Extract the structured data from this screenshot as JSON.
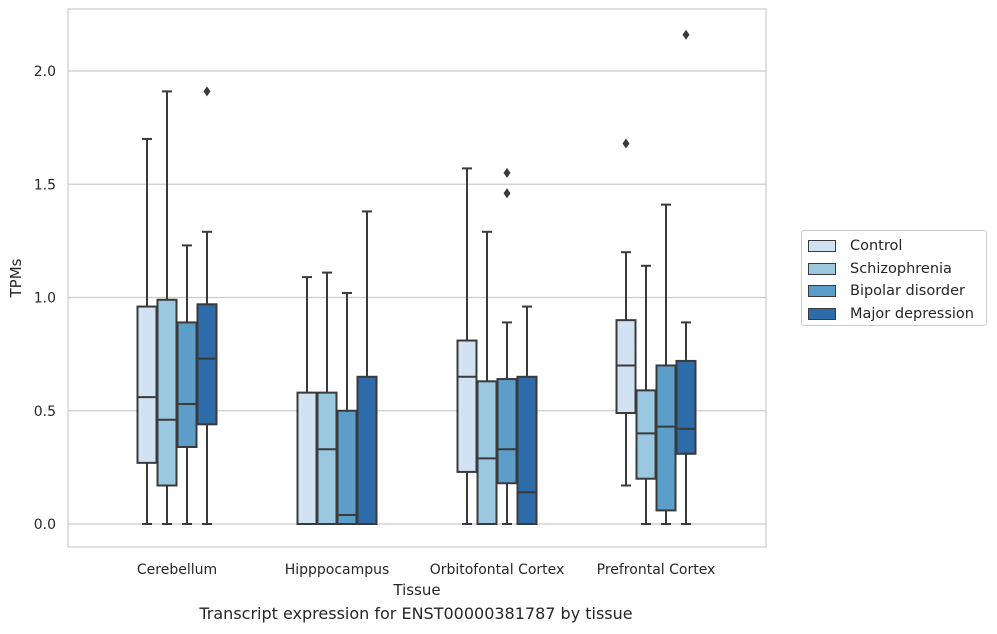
{
  "chart_data": {
    "type": "boxplot",
    "xlabel": "Tissue",
    "ylabel": "TPMs",
    "caption": "Transcript expression for ENST00000381787 by tissue",
    "ylim": [
      -0.1,
      2.28
    ],
    "yticks": [
      0.0,
      0.5,
      1.0,
      1.5,
      2.0
    ],
    "ytick_labels": [
      "0.0",
      "0.5",
      "1.0",
      "1.5",
      "2.0"
    ],
    "grid": "horizontal",
    "legend_position": "right",
    "categories": [
      "Cerebellum",
      "Hipppocampus",
      "Orbitofontal Cortex",
      "Prefrontal Cortex"
    ],
    "series": [
      {
        "name": "Control",
        "color": "#d1e2f2",
        "boxes": [
          {
            "whislo": 0.0,
            "q1": 0.27,
            "med": 0.56,
            "q3": 0.96,
            "whishi": 1.7,
            "fliers": []
          },
          {
            "whislo": 0.0,
            "q1": 0.0,
            "med": 0.0,
            "q3": 0.58,
            "whishi": 1.09,
            "fliers": []
          },
          {
            "whislo": 0.0,
            "q1": 0.23,
            "med": 0.65,
            "q3": 0.81,
            "whishi": 1.57,
            "fliers": []
          },
          {
            "whislo": 0.17,
            "q1": 0.49,
            "med": 0.7,
            "q3": 0.9,
            "whishi": 1.2,
            "fliers": [
              1.68
            ]
          }
        ]
      },
      {
        "name": "Schizophrenia",
        "color": "#9ac8e0",
        "boxes": [
          {
            "whislo": 0.0,
            "q1": 0.17,
            "med": 0.46,
            "q3": 0.99,
            "whishi": 1.91,
            "fliers": []
          },
          {
            "whislo": 0.0,
            "q1": 0.0,
            "med": 0.33,
            "q3": 0.58,
            "whishi": 1.11,
            "fliers": []
          },
          {
            "whislo": 0.0,
            "q1": 0.0,
            "med": 0.29,
            "q3": 0.63,
            "whishi": 1.29,
            "fliers": []
          },
          {
            "whislo": 0.0,
            "q1": 0.2,
            "med": 0.4,
            "q3": 0.59,
            "whishi": 1.14,
            "fliers": []
          }
        ]
      },
      {
        "name": "Bipolar disorder",
        "color": "#5a9ec9",
        "boxes": [
          {
            "whislo": 0.0,
            "q1": 0.34,
            "med": 0.53,
            "q3": 0.89,
            "whishi": 1.23,
            "fliers": []
          },
          {
            "whislo": 0.0,
            "q1": 0.0,
            "med": 0.04,
            "q3": 0.5,
            "whishi": 1.02,
            "fliers": []
          },
          {
            "whislo": 0.0,
            "q1": 0.18,
            "med": 0.33,
            "q3": 0.64,
            "whishi": 0.89,
            "fliers": [
              1.46,
              1.55
            ]
          },
          {
            "whislo": 0.0,
            "q1": 0.06,
            "med": 0.43,
            "q3": 0.7,
            "whishi": 1.41,
            "fliers": []
          }
        ]
      },
      {
        "name": "Major depression",
        "color": "#2d6ba9",
        "boxes": [
          {
            "whislo": 0.0,
            "q1": 0.44,
            "med": 0.73,
            "q3": 0.97,
            "whishi": 1.29,
            "fliers": [
              1.91
            ]
          },
          {
            "whislo": 0.0,
            "q1": 0.0,
            "med": 0.0,
            "q3": 0.65,
            "whishi": 1.38,
            "fliers": []
          },
          {
            "whislo": 0.0,
            "q1": 0.0,
            "med": 0.14,
            "q3": 0.65,
            "whishi": 0.96,
            "fliers": []
          },
          {
            "whislo": 0.0,
            "q1": 0.31,
            "med": 0.42,
            "q3": 0.72,
            "whishi": 0.89,
            "fliers": [
              2.16
            ]
          }
        ]
      }
    ]
  }
}
